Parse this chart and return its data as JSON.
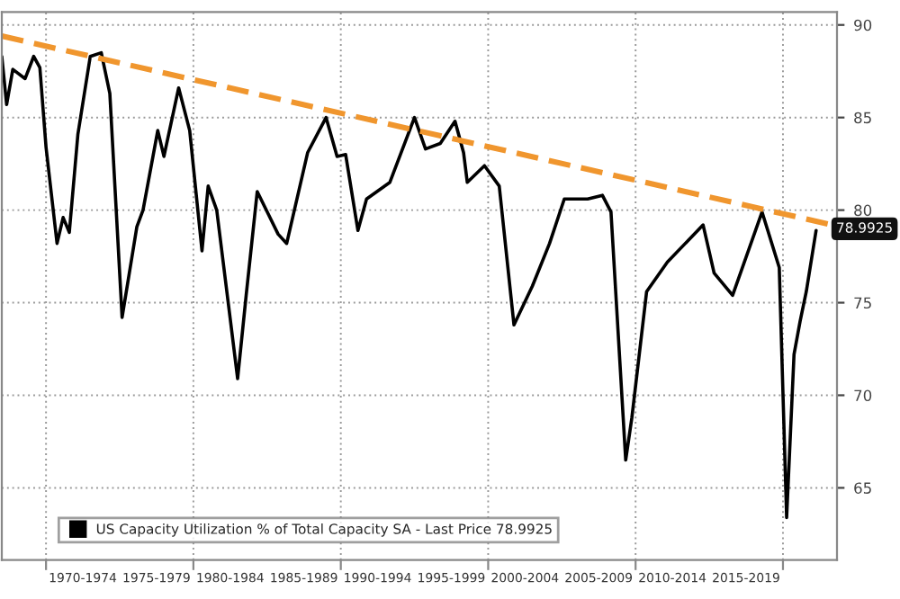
{
  "chart_data": {
    "type": "line",
    "x": [
      "1967-01",
      "1967-05",
      "1967-10",
      "1968-08",
      "1969-03",
      "1969-08",
      "1970-01",
      "1970-10",
      "1971-03",
      "1971-08",
      "1972-03",
      "1973-01",
      "1973-10",
      "1974-05",
      "1975-03",
      "1976-03",
      "1976-08",
      "1977-08",
      "1978-01",
      "1979-01",
      "1979-10",
      "1980-08",
      "1981-01",
      "1981-08",
      "1983-01",
      "1983-08",
      "1984-05",
      "1985-10",
      "1986-05",
      "1987-10",
      "1989-01",
      "1989-10",
      "1990-05",
      "1991-03",
      "1991-10",
      "1993-05",
      "1995-01",
      "1995-10",
      "1996-10",
      "1997-10",
      "1998-05",
      "1998-08",
      "1999-10",
      "2000-10",
      "2001-10",
      "2003-01",
      "2004-03",
      "2005-03",
      "2006-10",
      "2007-10",
      "2008-05",
      "2009-05",
      "2009-10",
      "2010-10",
      "2012-03",
      "2014-08",
      "2015-05",
      "2016-08",
      "2018-08",
      "2019-10",
      "2020-04",
      "2020-10",
      "2021-03",
      "2021-08",
      "2022-04"
    ],
    "series": [
      {
        "name": "US Capacity Utilization % of Total Capacity SA - Last Price 78.9925",
        "color": "#000000",
        "values": [
          88.3,
          85.7,
          87.6,
          87.1,
          88.3,
          87.7,
          83.4,
          78.2,
          79.6,
          78.8,
          84.1,
          88.3,
          88.5,
          86.3,
          74.2,
          79.1,
          80.0,
          84.3,
          82.9,
          86.6,
          84.3,
          77.8,
          81.3,
          80.0,
          70.9,
          75.4,
          81.0,
          78.7,
          78.2,
          83.1,
          85.0,
          82.9,
          83.0,
          78.9,
          80.6,
          81.5,
          85.0,
          83.3,
          83.6,
          84.8,
          83.1,
          81.5,
          82.4,
          81.3,
          73.8,
          75.9,
          78.2,
          80.6,
          80.6,
          80.8,
          79.9,
          66.5,
          68.8,
          75.6,
          77.2,
          79.2,
          76.6,
          75.4,
          79.9,
          76.9,
          63.4,
          72.2,
          74.0,
          75.6,
          78.9
        ]
      },
      {
        "type": "line",
        "x": [
          "1967-01",
          "2023-05"
        ],
        "color": "#f0962e",
        "line_style": "dashed",
        "values": [
          89.4,
          79.2
        ]
      }
    ],
    "xlim": [
      "1967-01",
      "2023-09"
    ],
    "xticks": [
      {
        "value": "1970-01",
        "label": null
      },
      {
        "value": "1972-07",
        "label": "1970-1974"
      },
      {
        "value": "1977-07",
        "label": "1975-1979"
      },
      {
        "value": "1980-01",
        "label": null
      },
      {
        "value": "1982-07",
        "label": "1980-1984"
      },
      {
        "value": "1987-07",
        "label": "1985-1989"
      },
      {
        "value": "1990-01",
        "label": null
      },
      {
        "value": "1992-07",
        "label": "1990-1994"
      },
      {
        "value": "1997-07",
        "label": "1995-1999"
      },
      {
        "value": "2000-01",
        "label": null
      },
      {
        "value": "2002-07",
        "label": "2000-2004"
      },
      {
        "value": "2007-07",
        "label": "2005-2009"
      },
      {
        "value": "2010-01",
        "label": null
      },
      {
        "value": "2012-07",
        "label": "2010-2014"
      },
      {
        "value": "2017-07",
        "label": "2015-2019"
      },
      {
        "value": "2020-01",
        "label": null
      }
    ],
    "ylim": [
      61.1,
      90.7
    ],
    "yticks": [
      65,
      70,
      75,
      80,
      85,
      90
    ],
    "grid": true,
    "legend": "bottom left",
    "annotations": [
      {
        "text": "78.9925",
        "x": "2022-04",
        "y": 78.9925
      }
    ]
  }
}
